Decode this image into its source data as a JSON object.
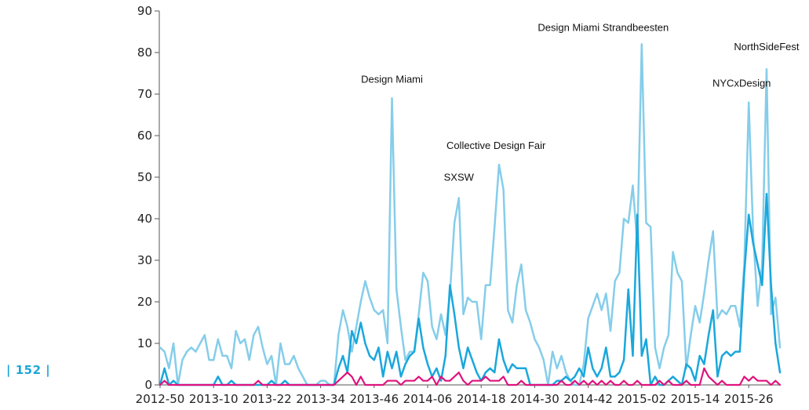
{
  "page_number": "| 152 |",
  "colors": {
    "series_light": "#85cdea",
    "series_mid": "#1aa7dc",
    "series_magenta": "#e0127d",
    "axis": "#555555",
    "page_number": "#1fa6d8"
  },
  "chart_data": {
    "type": "line",
    "title": "",
    "xlabel": "",
    "ylabel": "",
    "ylim": [
      0,
      90
    ],
    "yticks": [
      0,
      10,
      20,
      30,
      40,
      50,
      60,
      70,
      80,
      90
    ],
    "x_tick_labels": [
      "2012-50",
      "2013-10",
      "2013-22",
      "2013-34",
      "2013-46",
      "2014-06",
      "2014-18",
      "2014-30",
      "2014-42",
      "2015-02",
      "2015-14",
      "2015-26"
    ],
    "grid": false,
    "series": [
      {
        "color": "#85cdea",
        "values": [
          9,
          8,
          4,
          10,
          0,
          6,
          8,
          9,
          8,
          10,
          12,
          6,
          6,
          11,
          7,
          7,
          4,
          13,
          10,
          11,
          6,
          12,
          14,
          9,
          5,
          7,
          0,
          10,
          5,
          5,
          7,
          4,
          2,
          0,
          0,
          0,
          1,
          1,
          0,
          0,
          12,
          18,
          14,
          8,
          14,
          20,
          25,
          21,
          18,
          17,
          18,
          10,
          69,
          23,
          14,
          6,
          8,
          8,
          17,
          27,
          25,
          14,
          11,
          17,
          12,
          22,
          39,
          45,
          17,
          21,
          20,
          20,
          11,
          24,
          24,
          38,
          53,
          47,
          18,
          15,
          24,
          29,
          18,
          15,
          11,
          9,
          6,
          0,
          8,
          4,
          7,
          3,
          1,
          0,
          0,
          5,
          16,
          19,
          22,
          18,
          22,
          13,
          25,
          27,
          40,
          39,
          48,
          34,
          82,
          39,
          38,
          9,
          4,
          9,
          12,
          32,
          27,
          25,
          4,
          12,
          19,
          15,
          22,
          30,
          37,
          16,
          18,
          17,
          19,
          19,
          14,
          29,
          68,
          36,
          19,
          29,
          76,
          17,
          21,
          9
        ]
      },
      {
        "color": "#1aa7dc",
        "values": [
          0,
          4,
          0,
          1,
          0,
          0,
          0,
          0,
          0,
          0,
          0,
          0,
          0,
          2,
          0,
          0,
          1,
          0,
          0,
          0,
          0,
          0,
          0,
          0,
          0,
          1,
          0,
          0,
          1,
          0,
          0,
          0,
          0,
          0,
          0,
          0,
          0,
          0,
          0,
          0,
          4,
          7,
          3,
          13,
          10,
          15,
          10,
          7,
          6,
          9,
          2,
          8,
          4,
          8,
          2,
          5,
          7,
          8,
          16,
          9,
          5,
          2,
          4,
          1,
          7,
          24,
          17,
          9,
          4,
          9,
          6,
          3,
          1,
          3,
          4,
          3,
          11,
          6,
          3,
          5,
          4,
          4,
          4,
          0,
          0,
          0,
          0,
          0,
          0,
          1,
          1,
          2,
          1,
          2,
          4,
          2,
          9,
          4,
          2,
          4,
          9,
          2,
          2,
          3,
          6,
          23,
          7,
          41,
          7,
          11,
          0,
          2,
          0,
          0,
          1,
          2,
          1,
          0,
          5,
          4,
          1,
          7,
          5,
          12,
          18,
          2,
          7,
          8,
          7,
          8,
          8,
          27,
          41,
          34,
          29,
          24,
          46,
          24,
          10,
          3
        ]
      },
      {
        "color": "#e0127d",
        "values": [
          0,
          1,
          0,
          0,
          0,
          0,
          0,
          0,
          0,
          0,
          0,
          0,
          0,
          0,
          0,
          0,
          0,
          0,
          0,
          0,
          0,
          0,
          1,
          0,
          0,
          0,
          0,
          0,
          0,
          0,
          0,
          0,
          0,
          0,
          0,
          0,
          0,
          0,
          0,
          0,
          1,
          2,
          3,
          2,
          0,
          2,
          0,
          0,
          0,
          0,
          0,
          1,
          1,
          1,
          0,
          1,
          1,
          1,
          2,
          1,
          1,
          2,
          0,
          2,
          1,
          1,
          2,
          3,
          1,
          0,
          1,
          1,
          1,
          2,
          1,
          1,
          1,
          2,
          0,
          0,
          0,
          1,
          0,
          0,
          0,
          0,
          0,
          0,
          0,
          0,
          1,
          0,
          0,
          1,
          0,
          1,
          0,
          1,
          0,
          1,
          0,
          1,
          0,
          0,
          1,
          0,
          0,
          1,
          0,
          0,
          0,
          0,
          1,
          0,
          1,
          0,
          0,
          0,
          1,
          0,
          0,
          0,
          4,
          2,
          1,
          0,
          1,
          0,
          0,
          0,
          0,
          2,
          1,
          2,
          1,
          1,
          1,
          0,
          1,
          0
        ]
      }
    ],
    "annotations": [
      {
        "text": "Design Miami",
        "index": 52,
        "value": 69
      },
      {
        "text": "SXSW",
        "index": 67,
        "value": 45
      },
      {
        "text": "Collective Design Fair",
        "index": 76,
        "value": 53
      },
      {
        "text": "Design Miami Strandbeesten",
        "index": 108,
        "value": 82
      },
      {
        "text": "NYCxDesign",
        "index": 132,
        "value": 68
      },
      {
        "text": "NorthSideFest",
        "index": 136,
        "value": 76
      }
    ]
  }
}
